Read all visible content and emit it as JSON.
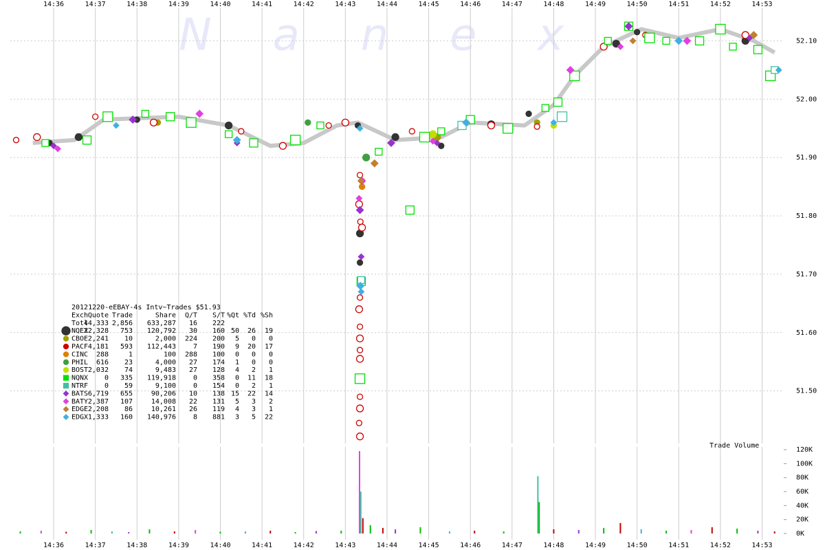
{
  "chart_data": [
    {
      "type": "scatter",
      "watermark": "N a n e x",
      "xlim": [
        874.96,
        893.52
      ],
      "xticks": [
        {
          "value": 876,
          "label": "14:36"
        },
        {
          "value": 877,
          "label": "14:37"
        },
        {
          "value": 878,
          "label": "14:38"
        },
        {
          "value": 879,
          "label": "14:39"
        },
        {
          "value": 880,
          "label": "14:40"
        },
        {
          "value": 881,
          "label": "14:41"
        },
        {
          "value": 882,
          "label": "14:42"
        },
        {
          "value": 883,
          "label": "14:43"
        },
        {
          "value": 884,
          "label": "14:44"
        },
        {
          "value": 885,
          "label": "14:45"
        },
        {
          "value": 886,
          "label": "14:46"
        },
        {
          "value": 887,
          "label": "14:47"
        },
        {
          "value": 888,
          "label": "14:48"
        },
        {
          "value": 889,
          "label": "14:49"
        },
        {
          "value": 890,
          "label": "14:50"
        },
        {
          "value": 891,
          "label": "14:51"
        },
        {
          "value": 892,
          "label": "14:52"
        },
        {
          "value": 893,
          "label": "14:53"
        }
      ],
      "ylim": [
        51.41,
        52.17
      ],
      "yticks": [
        {
          "value": 51.5,
          "label": "51.50"
        },
        {
          "value": 51.6,
          "label": "51.60"
        },
        {
          "value": 51.7,
          "label": "51.70"
        },
        {
          "value": 51.8,
          "label": "51.80"
        },
        {
          "value": 51.9,
          "label": "51.90"
        },
        {
          "value": 52.0,
          "label": "52.00"
        },
        {
          "value": 52.1,
          "label": "52.10"
        }
      ],
      "grid": true,
      "reference_line": {
        "color": "#c8c8c8",
        "x": [
          875.5,
          876.5,
          877.2,
          879,
          880.2,
          881.2,
          882,
          882.8,
          883.3,
          884.2,
          885.3,
          886,
          887.3,
          888,
          888.5,
          889.2,
          890.1,
          891,
          892,
          892.8,
          893.3
        ],
        "values": [
          51.925,
          51.93,
          51.965,
          51.97,
          51.955,
          51.92,
          51.925,
          51.955,
          51.96,
          51.93,
          51.935,
          51.96,
          51.955,
          51.99,
          52.04,
          52.09,
          52.12,
          52.105,
          52.12,
          52.1,
          52.08
        ]
      },
      "legend_title": "20121220-eEBAY-4s Intv~Trades $51.93",
      "legend_columns": [
        "Exch",
        "Quote",
        "Trade",
        "Share",
        "Q/T",
        "S/T",
        "%Qt",
        "%Td",
        "%Sh"
      ],
      "legend_total": {
        "name": "Totl",
        "stats": [
          "44,333",
          "2,856",
          "633,287",
          "16",
          "222"
        ]
      },
      "series": [
        {
          "name": "NQEX",
          "color": "#333333",
          "marker": "circle",
          "filled": true,
          "stats": [
            "22,328",
            "753",
            "120,792",
            "30",
            "160",
            "50",
            "26",
            "19"
          ],
          "x": [
            875.9,
            876.6,
            878.0,
            880.2,
            883.3,
            883.35,
            883.35,
            884.2,
            885.3,
            886.5,
            887.4,
            889.5,
            890.0,
            892.6
          ],
          "values": [
            51.925,
            51.935,
            51.965,
            51.955,
            51.955,
            51.77,
            51.72,
            51.935,
            51.92,
            51.957,
            51.975,
            52.095,
            52.115,
            52.1
          ]
        },
        {
          "name": "CBOE",
          "color": "#a0a000",
          "marker": "circle",
          "filled": true,
          "stats": [
            "2,241",
            "10",
            "2,000",
            "224",
            "200",
            "5",
            "0",
            "0"
          ],
          "x": [
            878.5,
            885.2,
            887.6
          ],
          "values": [
            51.96,
            51.935,
            51.96
          ]
        },
        {
          "name": "PACF",
          "color": "#d00000",
          "marker": "circle",
          "filled": false,
          "stats": [
            "4,181",
            "593",
            "112,443",
            "7",
            "190",
            "9",
            "20",
            "17"
          ],
          "x": [
            875.1,
            875.6,
            877.0,
            878.4,
            880.5,
            881.5,
            882.6,
            883.0,
            883.35,
            883.33,
            883.36,
            883.4,
            883.35,
            883.33,
            883.35,
            883.35,
            883.35,
            883.35,
            883.35,
            883.35,
            883.33,
            883.35,
            884.6,
            886.5,
            887.6,
            889.2,
            890.2,
            892.6
          ],
          "values": [
            51.93,
            51.935,
            51.97,
            51.96,
            51.945,
            51.92,
            51.955,
            51.96,
            51.87,
            51.82,
            51.79,
            51.78,
            51.66,
            51.64,
            51.61,
            51.59,
            51.57,
            51.555,
            51.49,
            51.47,
            51.445,
            51.422,
            51.945,
            51.955,
            51.953,
            52.09,
            52.11,
            52.11
          ]
        },
        {
          "name": "CINC",
          "color": "#e08000",
          "marker": "circle",
          "filled": true,
          "stats": [
            "288",
            "1",
            "100",
            "288",
            "100",
            "0",
            "0",
            "0"
          ],
          "x": [
            883.4
          ],
          "values": [
            51.85
          ]
        },
        {
          "name": "PHIL",
          "color": "#40a040",
          "marker": "circle",
          "filled": true,
          "stats": [
            "616",
            "23",
            "4,000",
            "27",
            "174",
            "1",
            "0",
            "0"
          ],
          "x": [
            882.1,
            883.5
          ],
          "values": [
            51.96,
            51.9
          ]
        },
        {
          "name": "BOST",
          "color": "#c0e000",
          "marker": "circle",
          "filled": true,
          "stats": [
            "2,032",
            "74",
            "9,483",
            "27",
            "128",
            "4",
            "2",
            "1"
          ],
          "x": [
            883.4,
            885.1,
            888.0
          ],
          "values": [
            51.86,
            51.94,
            51.955
          ]
        },
        {
          "name": "NQNX",
          "color": "#00e000",
          "marker": "square",
          "filled": false,
          "stats": [
            "0",
            "335",
            "119,918",
            "0",
            "358",
            "0",
            "11",
            "18"
          ],
          "x": [
            875.8,
            876.8,
            877.3,
            878.2,
            878.8,
            879.3,
            880.2,
            880.8,
            881.8,
            882.4,
            883.38,
            883.35,
            883.8,
            884.55,
            884.9,
            885.3,
            886.0,
            886.9,
            887.8,
            888.1,
            888.5,
            889.3,
            889.8,
            890.3,
            890.7,
            891.5,
            892.0,
            892.3,
            892.9,
            893.2
          ],
          "values": [
            51.925,
            51.93,
            51.97,
            51.975,
            51.97,
            51.96,
            51.94,
            51.925,
            51.93,
            51.955,
            51.688,
            51.521,
            51.91,
            51.81,
            51.935,
            51.945,
            51.965,
            51.95,
            51.985,
            51.995,
            52.04,
            52.1,
            52.125,
            52.105,
            52.1,
            52.1,
            52.12,
            52.09,
            52.085,
            52.04
          ]
        },
        {
          "name": "NTRF",
          "color": "#40c0a0",
          "marker": "square",
          "filled": false,
          "stats": [
            "0",
            "59",
            "9,100",
            "0",
            "154",
            "0",
            "2",
            "1"
          ],
          "x": [
            883.38,
            885.8,
            888.2,
            893.3
          ],
          "values": [
            51.69,
            51.955,
            51.97,
            52.05
          ]
        },
        {
          "name": "BATS",
          "color": "#9933cc",
          "marker": "diamond",
          "filled": true,
          "stats": [
            "6,719",
            "655",
            "90,206",
            "10",
            "138",
            "15",
            "22",
            "14"
          ],
          "x": [
            876.0,
            877.9,
            880.4,
            883.35,
            883.38,
            884.1,
            885.2,
            889.8,
            892.7
          ],
          "values": [
            51.92,
            51.965,
            51.925,
            51.81,
            51.73,
            51.925,
            51.925,
            52.125,
            52.105
          ]
        },
        {
          "name": "BATY",
          "color": "#e040e0",
          "marker": "diamond",
          "filled": true,
          "stats": [
            "2,387",
            "107",
            "14,008",
            "22",
            "131",
            "5",
            "3",
            "2"
          ],
          "x": [
            876.1,
            879.5,
            883.33,
            883.4,
            885.1,
            888.4,
            889.6,
            891.2
          ],
          "values": [
            51.915,
            51.975,
            51.83,
            51.86,
            51.928,
            52.05,
            52.09,
            52.1
          ]
        },
        {
          "name": "EDGE",
          "color": "#c08030",
          "marker": "diamond",
          "filled": true,
          "stats": [
            "2,208",
            "86",
            "10,261",
            "26",
            "119",
            "4",
            "3",
            "1"
          ],
          "x": [
            883.37,
            883.7,
            889.9,
            892.8
          ],
          "values": [
            51.86,
            51.89,
            52.1,
            52.11
          ]
        },
        {
          "name": "EDGX",
          "color": "#40b0e0",
          "marker": "diamond",
          "filled": true,
          "stats": [
            "1,333",
            "160",
            "140,976",
            "8",
            "881",
            "3",
            "5",
            "22"
          ],
          "x": [
            877.5,
            880.4,
            883.35,
            883.36,
            883.38,
            885.9,
            888.0,
            891.0,
            893.4
          ],
          "values": [
            51.955,
            51.93,
            51.95,
            51.68,
            51.67,
            51.96,
            51.96,
            52.1,
            52.05
          ]
        }
      ]
    },
    {
      "type": "bar",
      "title": "Trade Volume",
      "xlim": [
        874.96,
        893.52
      ],
      "xticks": [
        {
          "value": 876,
          "label": "14:36"
        },
        {
          "value": 877,
          "label": "14:37"
        },
        {
          "value": 878,
          "label": "14:38"
        },
        {
          "value": 879,
          "label": "14:39"
        },
        {
          "value": 880,
          "label": "14:40"
        },
        {
          "value": 881,
          "label": "14:41"
        },
        {
          "value": 882,
          "label": "14:42"
        },
        {
          "value": 883,
          "label": "14:43"
        },
        {
          "value": 884,
          "label": "14:44"
        },
        {
          "value": 885,
          "label": "14:45"
        },
        {
          "value": 886,
          "label": "14:46"
        },
        {
          "value": 887,
          "label": "14:47"
        },
        {
          "value": 888,
          "label": "14:48"
        },
        {
          "value": 889,
          "label": "14:49"
        },
        {
          "value": 890,
          "label": "14:50"
        },
        {
          "value": 891,
          "label": "14:51"
        },
        {
          "value": 892,
          "label": "14:52"
        },
        {
          "value": 893,
          "label": "14:53"
        }
      ],
      "ylim": [
        0,
        125000
      ],
      "yticks": [
        {
          "value": 0,
          "label": "0K"
        },
        {
          "value": 20000,
          "label": "20K"
        },
        {
          "value": 40000,
          "label": "40K"
        },
        {
          "value": 60000,
          "label": "60K"
        },
        {
          "value": 80000,
          "label": "80K"
        },
        {
          "value": 100000,
          "label": "100K"
        },
        {
          "value": 120000,
          "label": "120K"
        }
      ],
      "x": [
        875.2,
        875.7,
        876.3,
        876.9,
        877.4,
        877.8,
        878.3,
        878.9,
        879.4,
        880.0,
        880.6,
        881.2,
        881.8,
        882.3,
        882.9,
        883.34,
        883.37,
        883.42,
        883.6,
        883.9,
        884.2,
        884.8,
        885.5,
        886.1,
        886.8,
        887.62,
        887.65,
        888.0,
        888.6,
        889.2,
        889.6,
        890.1,
        890.7,
        891.3,
        891.8,
        892.4,
        892.9,
        893.3
      ],
      "values": [
        3000,
        4000,
        2500,
        5000,
        3000,
        2000,
        6000,
        3000,
        5000,
        2500,
        3000,
        4000,
        2000,
        3500,
        4000,
        118000,
        60000,
        22000,
        12000,
        8000,
        6000,
        9000,
        3000,
        4000,
        3000,
        82000,
        45000,
        6000,
        5000,
        8000,
        15000,
        6000,
        4000,
        5000,
        9000,
        7000,
        4000,
        3000
      ],
      "colors": [
        "#00c000",
        "#e040e0",
        "#c00000",
        "#00c000",
        "#40c0a0",
        "#9933cc",
        "#00c000",
        "#c00000",
        "#e040e0",
        "#00c000",
        "#40b0e0",
        "#c00000",
        "#00c000",
        "#9933cc",
        "#00c000",
        "#e040e0",
        "#40c0a0",
        "#c00000",
        "#00c000",
        "#c00000",
        "#9933cc",
        "#00c000",
        "#40b0e0",
        "#c00000",
        "#00c000",
        "#40c0a0",
        "#00c000",
        "#c00000",
        "#9933cc",
        "#00c000",
        "#c00000",
        "#40b0e0",
        "#00c000",
        "#e040e0",
        "#c00000",
        "#00c000",
        "#9933cc",
        "#c00000"
      ]
    }
  ]
}
